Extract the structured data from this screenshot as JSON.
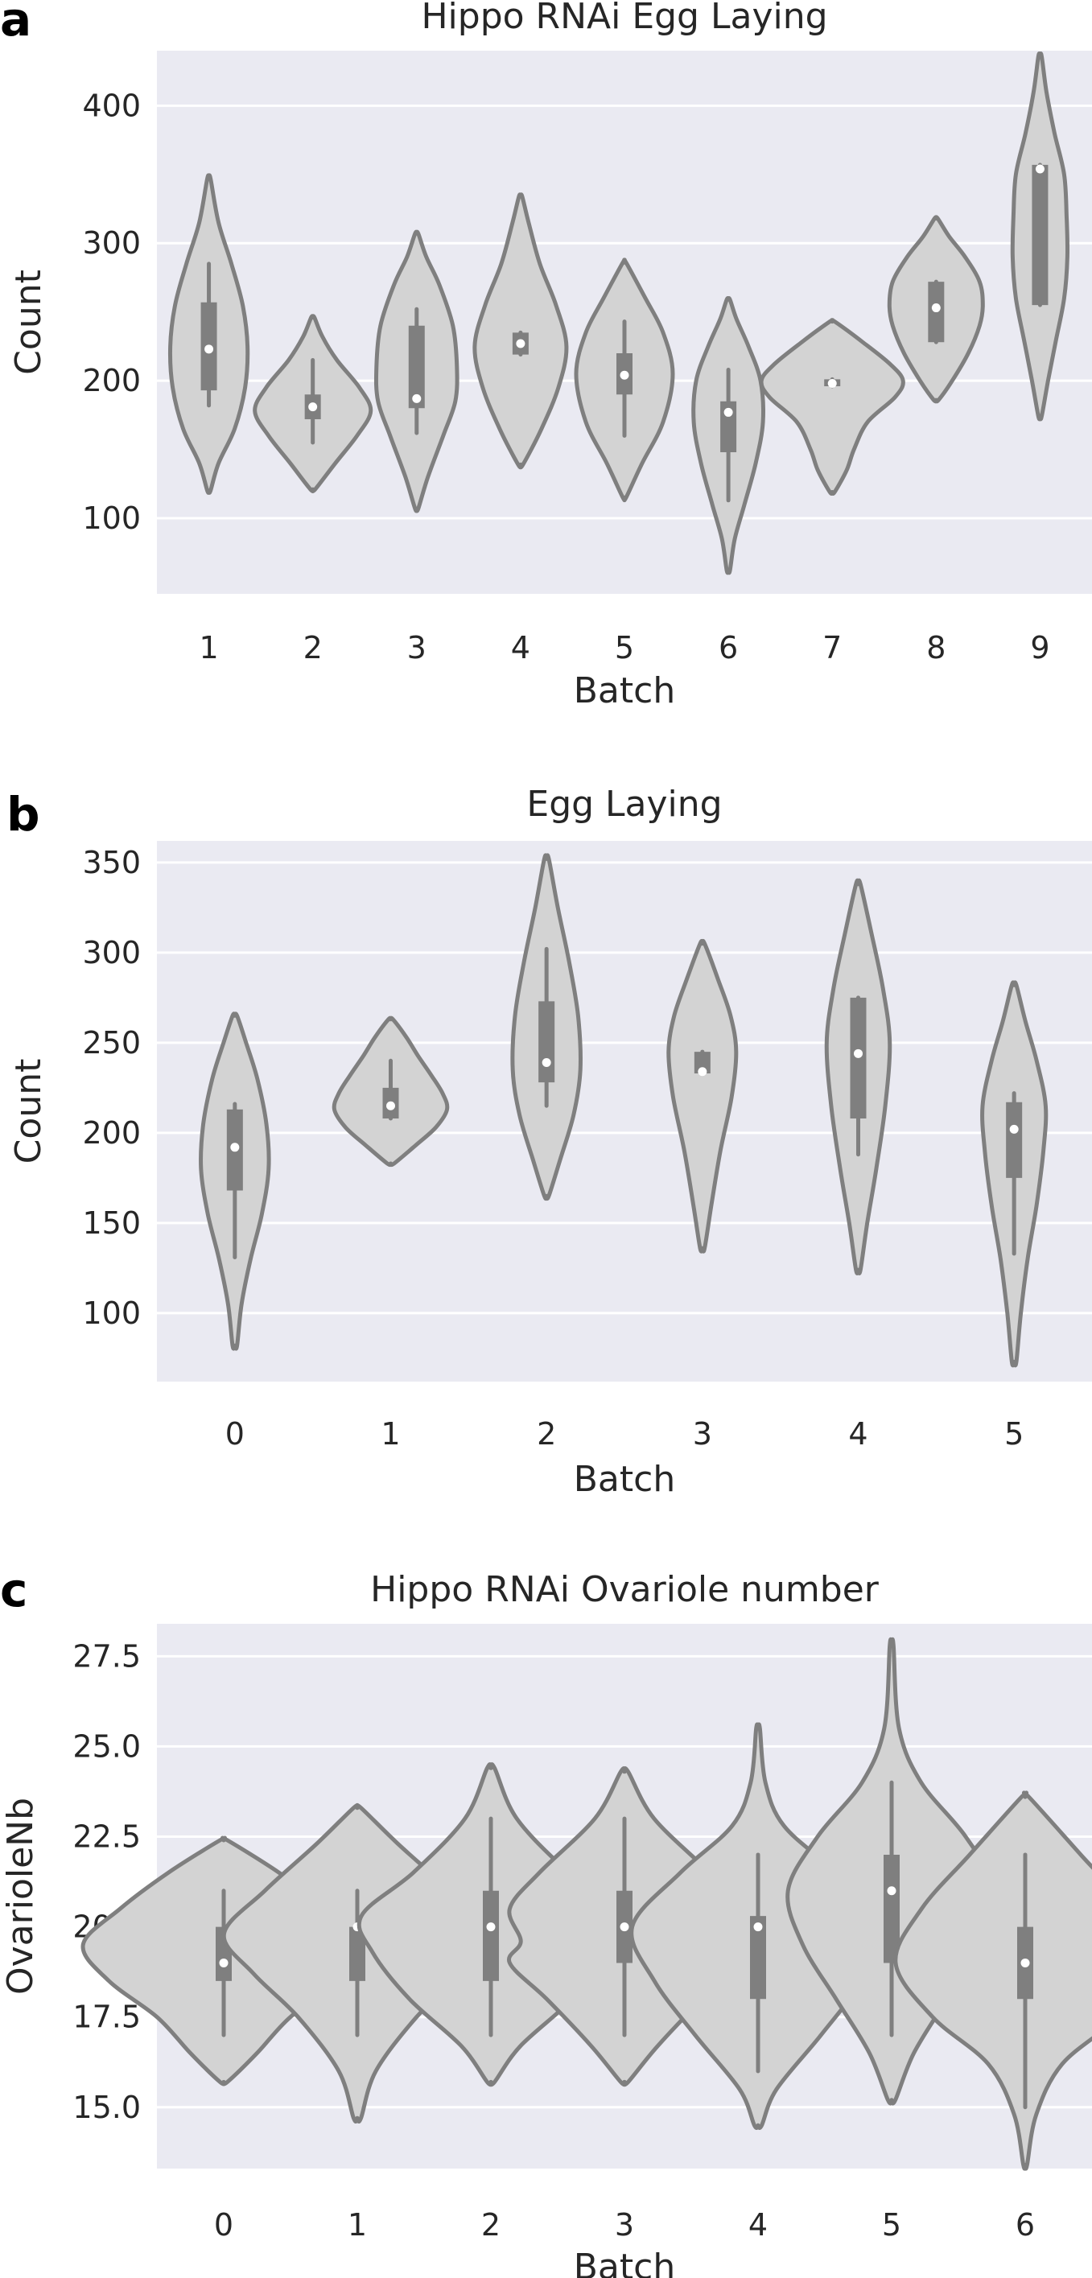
{
  "chart_data": [
    {
      "panel_label": "a",
      "type": "violin",
      "title": "Hippo RNAi Egg Laying",
      "xlabel": "Batch",
      "ylabel": "Count",
      "ylim": [
        45,
        440
      ],
      "yticks": [
        100,
        200,
        300,
        400
      ],
      "grid": true,
      "categories": [
        "1",
        "2",
        "3",
        "4",
        "5",
        "6",
        "7",
        "8",
        "9"
      ],
      "violins": [
        {
          "min": 120,
          "max": 347,
          "q1": 193,
          "median": 223,
          "q3": 257,
          "whisker_low": 182,
          "whisker_high": 285,
          "profile": [
            [
              120,
              0.02
            ],
            [
              140,
              0.12
            ],
            [
              165,
              0.32
            ],
            [
              195,
              0.45
            ],
            [
              225,
              0.48
            ],
            [
              255,
              0.42
            ],
            [
              285,
              0.28
            ],
            [
              315,
              0.12
            ],
            [
              347,
              0.02
            ]
          ]
        },
        {
          "min": 121,
          "max": 246,
          "q1": 172,
          "median": 181,
          "q3": 190,
          "whisker_low": 155,
          "whisker_high": 215,
          "profile": [
            [
              121,
              0.03
            ],
            [
              140,
              0.28
            ],
            [
              160,
              0.55
            ],
            [
              178,
              0.72
            ],
            [
              195,
              0.58
            ],
            [
              215,
              0.3
            ],
            [
              232,
              0.12
            ],
            [
              246,
              0.02
            ]
          ]
        },
        {
          "min": 107,
          "max": 307,
          "q1": 180,
          "median": 187,
          "q3": 240,
          "whisker_low": 162,
          "whisker_high": 252,
          "profile": [
            [
              107,
              0.02
            ],
            [
              130,
              0.14
            ],
            [
              160,
              0.33
            ],
            [
              185,
              0.48
            ],
            [
              210,
              0.5
            ],
            [
              240,
              0.45
            ],
            [
              270,
              0.28
            ],
            [
              290,
              0.12
            ],
            [
              307,
              0.02
            ]
          ]
        },
        {
          "min": 139,
          "max": 334,
          "q1": 219,
          "median": 227,
          "q3": 235,
          "whisker_low": 219,
          "whisker_high": 235,
          "profile": [
            [
              139,
              0.03
            ],
            [
              165,
              0.26
            ],
            [
              195,
              0.47
            ],
            [
              225,
              0.57
            ],
            [
              255,
              0.44
            ],
            [
              285,
              0.24
            ],
            [
              315,
              0.1
            ],
            [
              334,
              0.02
            ]
          ]
        },
        {
          "min": 115,
          "max": 286,
          "q1": 190,
          "median": 204,
          "q3": 220,
          "whisker_low": 160,
          "whisker_high": 243,
          "profile": [
            [
              115,
              0.02
            ],
            [
              140,
              0.22
            ],
            [
              170,
              0.48
            ],
            [
              205,
              0.6
            ],
            [
              235,
              0.48
            ],
            [
              260,
              0.26
            ],
            [
              286,
              0.02
            ]
          ]
        },
        {
          "min": 62,
          "max": 259,
          "q1": 148,
          "median": 177,
          "q3": 185,
          "whisker_low": 113,
          "whisker_high": 208,
          "profile": [
            [
              62,
              0.02
            ],
            [
              85,
              0.08
            ],
            [
              110,
              0.2
            ],
            [
              140,
              0.34
            ],
            [
              170,
              0.43
            ],
            [
              200,
              0.4
            ],
            [
              225,
              0.25
            ],
            [
              245,
              0.1
            ],
            [
              259,
              0.02
            ]
          ]
        },
        {
          "min": 119,
          "max": 243,
          "q1": 196,
          "median": 198,
          "q3": 201,
          "whisker_low": 196,
          "whisker_high": 201,
          "profile": [
            [
              119,
              0.03
            ],
            [
              135,
              0.18
            ],
            [
              150,
              0.27
            ],
            [
              170,
              0.44
            ],
            [
              188,
              0.78
            ],
            [
              200,
              0.88
            ],
            [
              212,
              0.72
            ],
            [
              228,
              0.38
            ],
            [
              243,
              0.03
            ]
          ]
        },
        {
          "min": 186,
          "max": 318,
          "q1": 228,
          "median": 253,
          "q3": 272,
          "whisker_low": 228,
          "whisker_high": 272,
          "profile": [
            [
              186,
              0.03
            ],
            [
              200,
              0.2
            ],
            [
              220,
              0.4
            ],
            [
              240,
              0.54
            ],
            [
              255,
              0.58
            ],
            [
              272,
              0.54
            ],
            [
              290,
              0.36
            ],
            [
              305,
              0.16
            ],
            [
              318,
              0.02
            ]
          ]
        },
        {
          "min": 174,
          "max": 436,
          "q1": 255,
          "median": 354,
          "q3": 357,
          "whisker_low": 255,
          "whisker_high": 357,
          "profile": [
            [
              174,
              0.02
            ],
            [
              200,
              0.1
            ],
            [
              230,
              0.2
            ],
            [
              260,
              0.3
            ],
            [
              290,
              0.34
            ],
            [
              320,
              0.33
            ],
            [
              350,
              0.3
            ],
            [
              380,
              0.18
            ],
            [
              410,
              0.08
            ],
            [
              436,
              0.02
            ]
          ]
        }
      ]
    },
    {
      "panel_label": "b",
      "type": "violin",
      "title": "Egg Laying",
      "xlabel": "Batch",
      "ylabel": "Count",
      "ylim": [
        62,
        362
      ],
      "yticks": [
        100,
        150,
        200,
        250,
        300,
        350
      ],
      "grid": true,
      "categories": [
        "0",
        "1",
        "2",
        "3",
        "4",
        "5"
      ],
      "violins": [
        {
          "min": 82,
          "max": 265,
          "q1": 168,
          "median": 192,
          "q3": 213,
          "whisker_low": 131,
          "whisker_high": 216,
          "profile": [
            [
              82,
              0.02
            ],
            [
              105,
              0.06
            ],
            [
              130,
              0.14
            ],
            [
              155,
              0.24
            ],
            [
              180,
              0.3
            ],
            [
              205,
              0.28
            ],
            [
              230,
              0.2
            ],
            [
              250,
              0.1
            ],
            [
              265,
              0.02
            ]
          ]
        },
        {
          "min": 183,
          "max": 263,
          "q1": 208,
          "median": 215,
          "q3": 225,
          "whisker_low": 208,
          "whisker_high": 240,
          "profile": [
            [
              183,
              0.03
            ],
            [
              193,
              0.22
            ],
            [
              203,
              0.4
            ],
            [
              213,
              0.5
            ],
            [
              222,
              0.46
            ],
            [
              232,
              0.36
            ],
            [
              243,
              0.24
            ],
            [
              253,
              0.14
            ],
            [
              263,
              0.02
            ]
          ]
        },
        {
          "min": 165,
          "max": 352,
          "q1": 228,
          "median": 239,
          "q3": 273,
          "whisker_low": 215,
          "whisker_high": 302,
          "profile": [
            [
              165,
              0.02
            ],
            [
              185,
              0.12
            ],
            [
              210,
              0.24
            ],
            [
              235,
              0.3
            ],
            [
              265,
              0.28
            ],
            [
              295,
              0.2
            ],
            [
              325,
              0.1
            ],
            [
              352,
              0.02
            ]
          ]
        },
        {
          "min": 136,
          "max": 305,
          "q1": 233,
          "median": 234,
          "q3": 245,
          "whisker_low": 233,
          "whisker_high": 245,
          "profile": [
            [
              136,
              0.02
            ],
            [
              160,
              0.08
            ],
            [
              190,
              0.16
            ],
            [
              220,
              0.26
            ],
            [
              245,
              0.3
            ],
            [
              265,
              0.25
            ],
            [
              285,
              0.14
            ],
            [
              305,
              0.02
            ]
          ]
        },
        {
          "min": 124,
          "max": 338,
          "q1": 208,
          "median": 244,
          "q3": 275,
          "whisker_low": 188,
          "whisker_high": 275,
          "profile": [
            [
              124,
              0.02
            ],
            [
              150,
              0.08
            ],
            [
              180,
              0.16
            ],
            [
              215,
              0.24
            ],
            [
              250,
              0.28
            ],
            [
              280,
              0.22
            ],
            [
              310,
              0.12
            ],
            [
              338,
              0.02
            ]
          ]
        },
        {
          "min": 73,
          "max": 282,
          "q1": 175,
          "median": 202,
          "q3": 217,
          "whisker_low": 133,
          "whisker_high": 222,
          "profile": [
            [
              73,
              0.02
            ],
            [
              100,
              0.06
            ],
            [
              130,
              0.12
            ],
            [
              160,
              0.2
            ],
            [
              190,
              0.26
            ],
            [
              215,
              0.28
            ],
            [
              240,
              0.2
            ],
            [
              262,
              0.1
            ],
            [
              282,
              0.02
            ]
          ]
        }
      ]
    },
    {
      "panel_label": "c",
      "type": "violin",
      "title": "Hippo RNAi Ovariole number",
      "xlabel": "Batch",
      "ylabel": "OvarioleNb",
      "ylim": [
        13.3,
        28.4
      ],
      "yticks": [
        "15.0",
        "17.5",
        "20.0",
        "22.5",
        "25.0",
        "27.5"
      ],
      "grid": true,
      "categories": [
        "0",
        "1",
        "2",
        "3",
        "4",
        "5",
        "6"
      ],
      "violins": [
        {
          "min": 15.7,
          "max": 22.4,
          "q1": 18.5,
          "median": 19.0,
          "q3": 20.0,
          "whisker_low": 17.0,
          "whisker_high": 21.0,
          "profile": [
            [
              15.7,
              0.02
            ],
            [
              16.5,
              0.18
            ],
            [
              17.5,
              0.36
            ],
            [
              18.5,
              0.62
            ],
            [
              19.5,
              0.76
            ],
            [
              20.5,
              0.56
            ],
            [
              21.5,
              0.3
            ],
            [
              22.4,
              0.02
            ]
          ]
        },
        {
          "min": 14.7,
          "max": 23.3,
          "q1": 18.5,
          "median": 20.0,
          "q3": 20.0,
          "whisker_low": 17.0,
          "whisker_high": 21.0,
          "profile": [
            [
              14.7,
              0.02
            ],
            [
              16.0,
              0.1
            ],
            [
              17.5,
              0.32
            ],
            [
              18.7,
              0.56
            ],
            [
              19.8,
              0.72
            ],
            [
              21.0,
              0.5
            ],
            [
              22.3,
              0.22
            ],
            [
              23.3,
              0.02
            ]
          ]
        },
        {
          "min": 15.7,
          "max": 24.4,
          "q1": 18.5,
          "median": 20.0,
          "q3": 21.0,
          "whisker_low": 17.0,
          "whisker_high": 23.0,
          "profile": [
            [
              15.7,
              0.02
            ],
            [
              16.7,
              0.16
            ],
            [
              18.0,
              0.44
            ],
            [
              19.3,
              0.64
            ],
            [
              20.3,
              0.7
            ],
            [
              21.5,
              0.42
            ],
            [
              23.0,
              0.14
            ],
            [
              24.4,
              0.02
            ]
          ]
        },
        {
          "min": 15.7,
          "max": 24.3,
          "q1": 19.0,
          "median": 20.0,
          "q3": 21.0,
          "whisker_low": 17.0,
          "whisker_high": 23.0,
          "profile": [
            [
              15.7,
              0.02
            ],
            [
              16.7,
              0.18
            ],
            [
              18.0,
              0.42
            ],
            [
              19.0,
              0.62
            ],
            [
              19.6,
              0.56
            ],
            [
              20.5,
              0.62
            ],
            [
              21.5,
              0.46
            ],
            [
              23.0,
              0.16
            ],
            [
              24.3,
              0.02
            ]
          ]
        },
        {
          "min": 14.5,
          "max": 25.5,
          "q1": 18.0,
          "median": 20.0,
          "q3": 20.3,
          "whisker_low": 16.0,
          "whisker_high": 22.0,
          "profile": [
            [
              14.5,
              0.02
            ],
            [
              15.5,
              0.1
            ],
            [
              17.0,
              0.34
            ],
            [
              18.5,
              0.56
            ],
            [
              20.0,
              0.68
            ],
            [
              21.5,
              0.42
            ],
            [
              22.8,
              0.14
            ],
            [
              24.0,
              0.04
            ],
            [
              25.5,
              0.01
            ]
          ]
        },
        {
          "min": 15.2,
          "max": 27.8,
          "q1": 19.0,
          "median": 21.0,
          "q3": 22.0,
          "whisker_low": 17.0,
          "whisker_high": 24.0,
          "profile": [
            [
              15.2,
              0.02
            ],
            [
              16.5,
              0.12
            ],
            [
              18.0,
              0.3
            ],
            [
              19.5,
              0.48
            ],
            [
              21.0,
              0.56
            ],
            [
              22.5,
              0.4
            ],
            [
              24.0,
              0.16
            ],
            [
              25.5,
              0.04
            ],
            [
              27.8,
              0.01
            ]
          ]
        },
        {
          "min": 13.4,
          "max": 23.6,
          "q1": 18.0,
          "median": 19.0,
          "q3": 20.0,
          "whisker_low": 15.0,
          "whisker_high": 22.0,
          "profile": [
            [
              13.4,
              0.01
            ],
            [
              14.8,
              0.06
            ],
            [
              16.2,
              0.2
            ],
            [
              17.5,
              0.5
            ],
            [
              19.0,
              0.7
            ],
            [
              20.5,
              0.56
            ],
            [
              22.0,
              0.3
            ],
            [
              23.6,
              0.02
            ]
          ]
        }
      ]
    }
  ]
}
